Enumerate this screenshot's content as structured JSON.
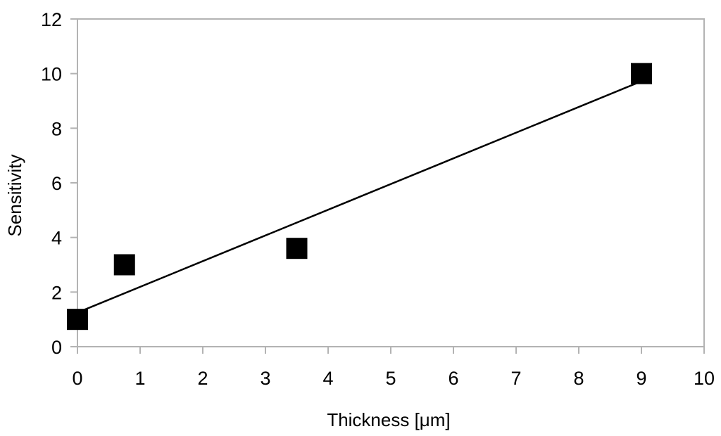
{
  "chart_data": {
    "type": "scatter",
    "xlabel": "Thickness [μm]",
    "ylabel": "Sensitivity",
    "xlim": [
      0,
      10
    ],
    "ylim": [
      0,
      12
    ],
    "x_ticks": [
      0,
      1,
      2,
      3,
      4,
      5,
      6,
      7,
      8,
      9,
      10
    ],
    "y_ticks": [
      0,
      2,
      4,
      6,
      8,
      10,
      12
    ],
    "grid": false,
    "legend": "none",
    "series": [
      {
        "marker": "square",
        "color": "#000000",
        "points": [
          {
            "x": 0,
            "y": 1.0
          },
          {
            "x": 0.75,
            "y": 3.0
          },
          {
            "x": 3.5,
            "y": 3.6
          },
          {
            "x": 9,
            "y": 10.0
          }
        ]
      }
    ],
    "trendline": {
      "type": "linear",
      "color": "#000000",
      "x_range": [
        0,
        9
      ],
      "start_y": 1.25,
      "end_y": 9.72
    }
  }
}
